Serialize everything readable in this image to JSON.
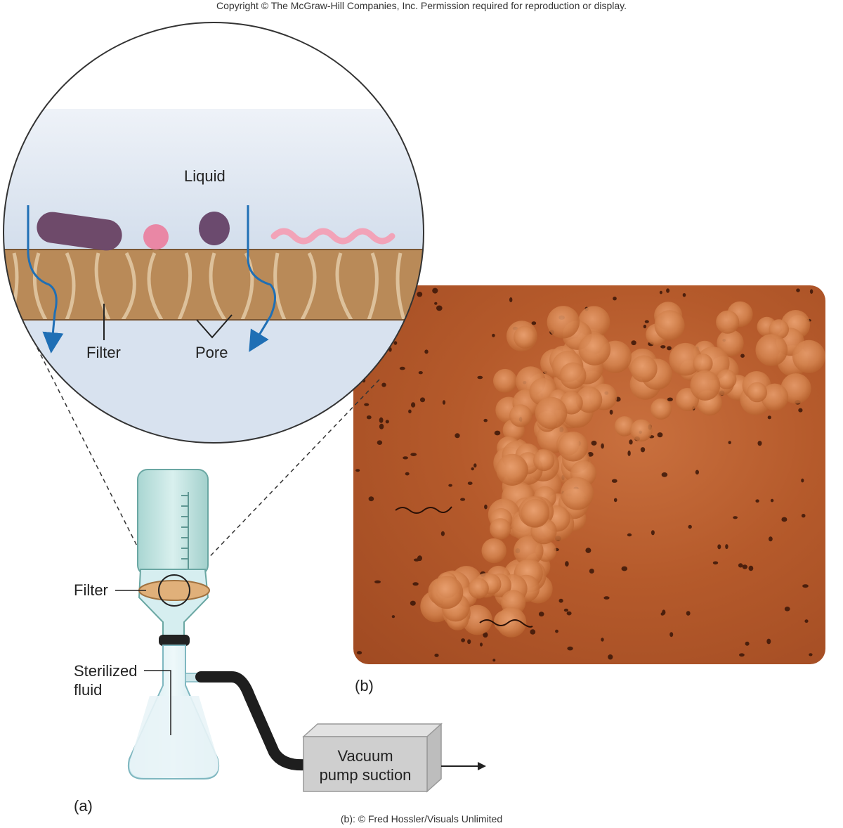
{
  "copyright": "Copyright © The McGraw-Hill Companies, Inc. Permission required for reproduction or display.",
  "credit": "(b): © Fred Hossler/Visuals Unlimited",
  "panel_a": {
    "label": "(a)",
    "filter_label": "Filter",
    "sterilized_label_line1": "Sterilized",
    "sterilized_label_line2": "fluid",
    "pump_line1": "Vacuum",
    "pump_line2": "pump suction"
  },
  "magnified": {
    "liquid_label": "Liquid",
    "filter_label": "Filter",
    "pore_label": "Pore"
  },
  "panel_b": {
    "label": "(b)"
  },
  "colors": {
    "liquid": "#d9e3f0",
    "filter": "#b98a58",
    "arrow": "#1f6fb5",
    "micrograph": "#b55a2b"
  }
}
